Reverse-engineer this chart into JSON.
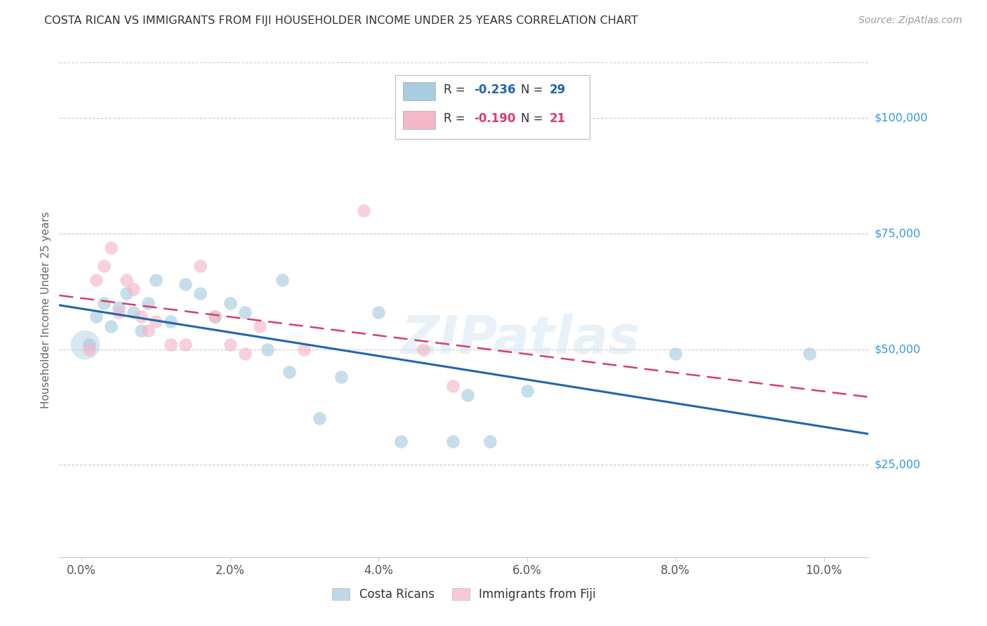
{
  "title": "COSTA RICAN VS IMMIGRANTS FROM FIJI HOUSEHOLDER INCOME UNDER 25 YEARS CORRELATION CHART",
  "source": "Source: ZipAtlas.com",
  "ylabel": "Householder Income Under 25 years",
  "xlim": [
    -0.003,
    0.106
  ],
  "ylim": [
    5000,
    112000
  ],
  "watermark": "ZIPatlas",
  "legend1_r": "-0.236",
  "legend1_n": "29",
  "legend2_r": "-0.190",
  "legend2_n": "21",
  "cr_x": [
    0.001,
    0.002,
    0.003,
    0.004,
    0.005,
    0.006,
    0.007,
    0.008,
    0.009,
    0.01,
    0.012,
    0.014,
    0.016,
    0.018,
    0.02,
    0.022,
    0.025,
    0.027,
    0.028,
    0.032,
    0.035,
    0.04,
    0.043,
    0.05,
    0.052,
    0.055,
    0.06,
    0.08,
    0.098
  ],
  "cr_y": [
    51000,
    57000,
    60000,
    55000,
    59000,
    62000,
    58000,
    54000,
    60000,
    65000,
    56000,
    64000,
    62000,
    57000,
    60000,
    58000,
    50000,
    65000,
    45000,
    35000,
    44000,
    58000,
    30000,
    30000,
    40000,
    30000,
    41000,
    49000,
    49000
  ],
  "fiji_x": [
    0.001,
    0.002,
    0.003,
    0.004,
    0.005,
    0.006,
    0.007,
    0.008,
    0.009,
    0.01,
    0.012,
    0.014,
    0.016,
    0.018,
    0.02,
    0.022,
    0.024,
    0.03,
    0.038,
    0.046,
    0.05
  ],
  "fiji_y": [
    50000,
    65000,
    68000,
    72000,
    58000,
    65000,
    63000,
    57000,
    54000,
    56000,
    51000,
    51000,
    68000,
    57000,
    51000,
    49000,
    55000,
    50000,
    80000,
    50000,
    42000
  ],
  "blue_scatter_color": "#a8cce0",
  "pink_scatter_color": "#f4b8c8",
  "blue_line_color": "#2166ac",
  "pink_line_color": "#d63e6e",
  "grid_color": "#cccccc",
  "axis_tick_color": "#555555",
  "right_label_color": "#3399dd",
  "title_color": "#333333",
  "source_color": "#999999",
  "bg_color": "#ffffff",
  "x_tick_labels": [
    "0.0%",
    "2.0%",
    "4.0%",
    "6.0%",
    "8.0%",
    "10.0%"
  ],
  "x_tick_vals": [
    0.0,
    0.02,
    0.04,
    0.06,
    0.08,
    0.1
  ],
  "y_tick_vals": [
    25000,
    50000,
    75000,
    100000
  ],
  "y_tick_labels": [
    "$25,000",
    "$50,000",
    "$75,000",
    "$100,000"
  ]
}
